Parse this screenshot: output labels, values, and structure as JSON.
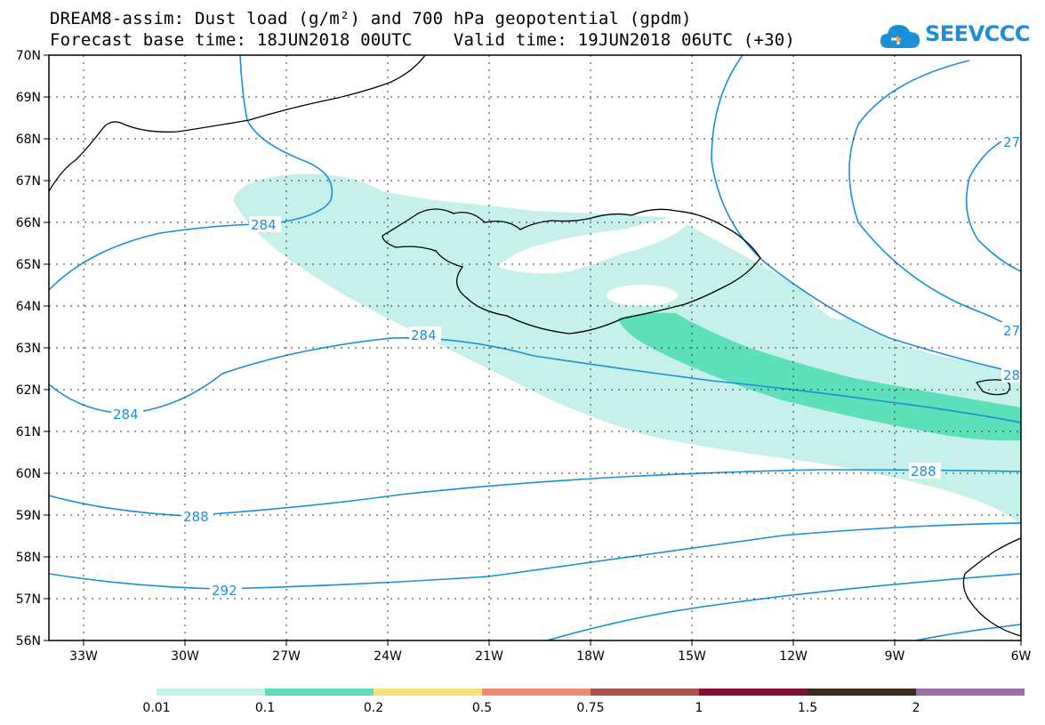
{
  "header": {
    "title_line1": "DREAM8-assim: Dust load (g/m²) and 700 hPa geopotential (gpdm)",
    "title_line2": "Forecast base time: 18JUN2018 00UTC    Valid time: 19JUN2018 06UTC (+30)"
  },
  "logo": {
    "text": "SEEVCCC",
    "icon": "cloud-icon"
  },
  "axes": {
    "lat_labels": [
      "70N",
      "69N",
      "68N",
      "67N",
      "66N",
      "65N",
      "64N",
      "63N",
      "62N",
      "61N",
      "60N",
      "59N",
      "58N",
      "57N",
      "56N"
    ],
    "lon_labels": [
      "33W",
      "30W",
      "27W",
      "24W",
      "21W",
      "18W",
      "15W",
      "12W",
      "9W",
      "6W"
    ]
  },
  "contours": {
    "labels": [
      {
        "text": "284"
      },
      {
        "text": "284"
      },
      {
        "text": "284"
      },
      {
        "text": "288"
      },
      {
        "text": "288"
      },
      {
        "text": "292"
      },
      {
        "text": "27"
      },
      {
        "text": "27"
      },
      {
        "text": "28"
      }
    ]
  },
  "colorbar": {
    "labels": [
      "0.01",
      "0.1",
      "0.2",
      "0.5",
      "0.75",
      "1",
      "1.5",
      "2"
    ],
    "colors": [
      "#c6f1ea",
      "#5ddfb9",
      "#f5e27a",
      "#e98e6a",
      "#a8504d",
      "#7e0f32",
      "#3b2a1a",
      "#9a6fa8"
    ]
  },
  "colors": {
    "dust_light": "#c6f1ea",
    "dust_medium": "#5ddfb9",
    "contour": "#1a8fd6",
    "coast": "#000000"
  }
}
